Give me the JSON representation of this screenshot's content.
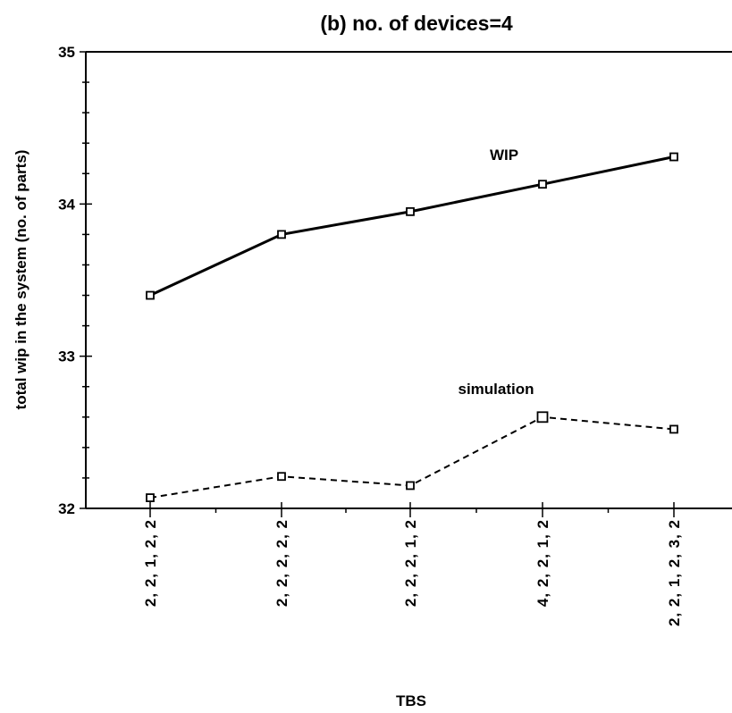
{
  "chart_data": {
    "type": "line",
    "title": "(b) no. of devices=4",
    "xlabel": "TBS",
    "ylabel": "total wip in the system (no. of parts)",
    "categories": [
      "2, 2, 1, 2, 2",
      "2, 2, 2, 2, 2",
      "2, 2, 2, 1, 2",
      "4, 2, 2, 1, 2",
      "2, 2, 1, 2, 3, 2"
    ],
    "ylim": [
      32,
      35
    ],
    "yticks": [
      "32",
      "33",
      "34",
      "35"
    ],
    "grid": false,
    "legend": "none",
    "series": [
      {
        "name": "WIP",
        "values": [
          33.4,
          33.8,
          33.95,
          34.13,
          34.31
        ],
        "line_style": "solid",
        "color": "#000000"
      },
      {
        "name": "simulation",
        "values": [
          32.07,
          32.21,
          32.15,
          32.6,
          32.52
        ],
        "line_style": "dashed",
        "color": "#000000"
      }
    ],
    "annotations": [
      "WIP",
      "simulation"
    ]
  }
}
